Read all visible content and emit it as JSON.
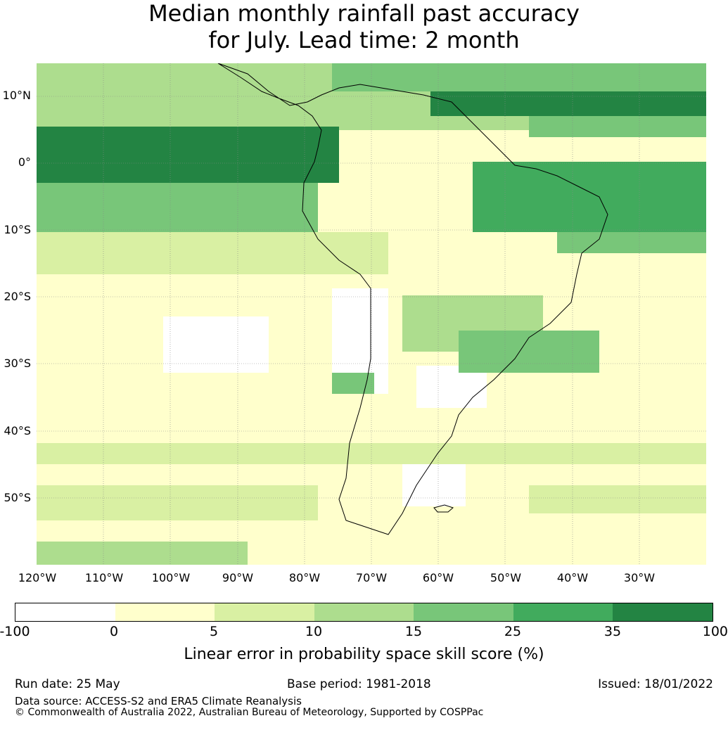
{
  "title_line1": "Median monthly rainfall past accuracy",
  "title_line2": "for July. Lead time: 2 month",
  "map": {
    "lon_labels": [
      "120°W",
      "110°W",
      "100°W",
      "90°W",
      "80°W",
      "70°W",
      "60°W",
      "50°W",
      "40°W",
      "30°W"
    ],
    "lat_labels": [
      "10°N",
      "0°",
      "10°S",
      "20°S",
      "30°S",
      "40°S",
      "50°S"
    ],
    "extent": {
      "lon_min": -120,
      "lon_max": -20,
      "lat_min": -60,
      "lat_max": 15
    }
  },
  "colorbar": {
    "ticks": [
      "-100",
      "0",
      "5",
      "10",
      "15",
      "25",
      "35",
      "100"
    ],
    "colors": [
      "#ffffff",
      "#ffffcc",
      "#d9f0a3",
      "#addd8e",
      "#78c679",
      "#41ab5d",
      "#238443"
    ],
    "label": "Linear error in probability space skill score (%)"
  },
  "footer": {
    "run_date": "Run date: 25 May",
    "base_period": "Base period: 1981-2018",
    "issued": "Issued: 18/01/2022",
    "data_source": "Data source: ACCESS-S2 and ERA5 Climate Reanalysis",
    "copyright": "© Commonwealth of Australia 2022, Australian Bureau of Meteorology, Supported by COSPPac"
  }
}
